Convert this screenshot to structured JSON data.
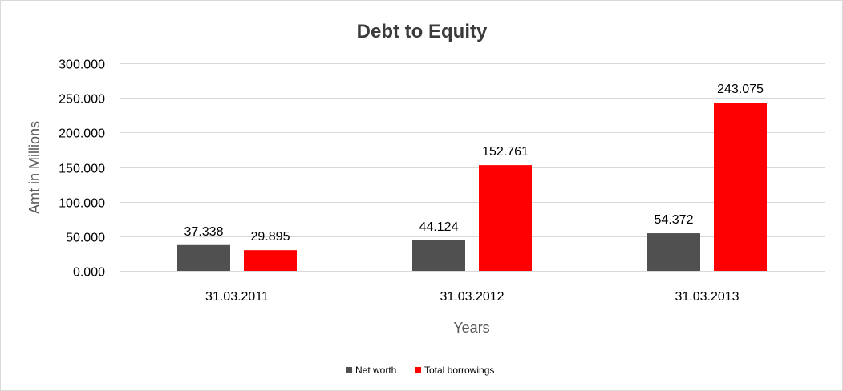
{
  "chart_data": {
    "type": "bar",
    "title": "Debt to Equity",
    "xlabel": "Years",
    "ylabel": "Amt in Millions",
    "categories": [
      "31.03.2011",
      "31.03.2012",
      "31.03.2013"
    ],
    "series": [
      {
        "name": "Net worth",
        "values": [
          37.338,
          44.124,
          54.372
        ],
        "labels": [
          "37.338",
          "44.124",
          "54.372"
        ],
        "color": "#505050"
      },
      {
        "name": "Total borrowings",
        "values": [
          29.895,
          152.761,
          243.075
        ],
        "labels": [
          "29.895",
          "152.761",
          "243.075"
        ],
        "color": "#ff0000"
      }
    ],
    "ylim": [
      0,
      300
    ],
    "yticks": [
      0,
      50,
      100,
      150,
      200,
      250,
      300
    ],
    "ytick_labels": [
      "0.000",
      "50.000",
      "100.000",
      "150.000",
      "200.000",
      "250.000",
      "300.000"
    ],
    "grid": true,
    "legend_position": "bottom"
  }
}
